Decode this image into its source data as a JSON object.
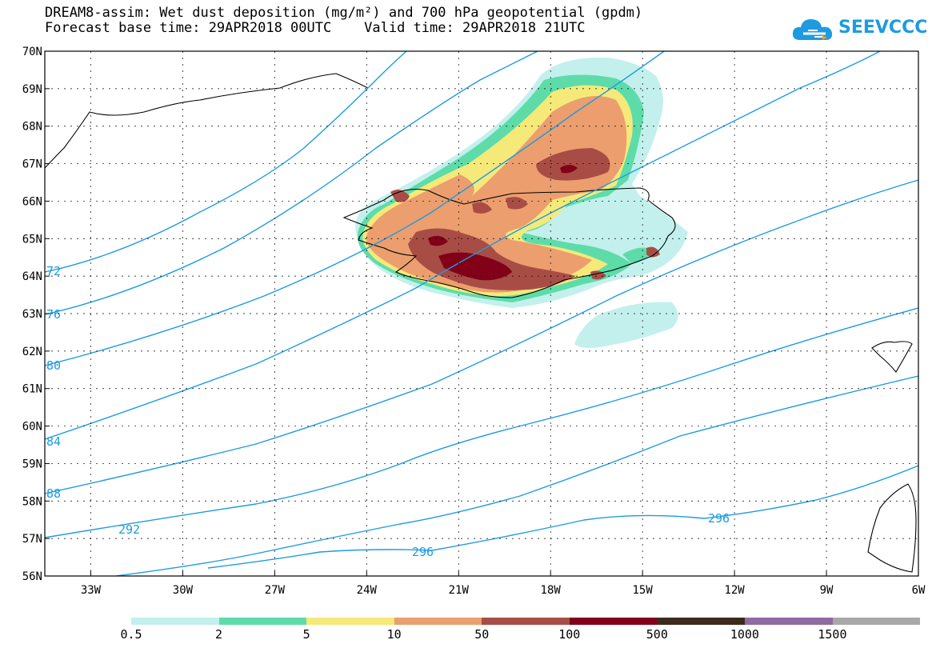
{
  "title": {
    "line1": "DREAM8-assim: Wet dust deposition (mg/m²) and 700 hPa geopotential (gpdm)",
    "line2": "Forecast base time: 29APR2018 00UTC    Valid time: 29APR2018 21UTC"
  },
  "logo": {
    "text": "SEEVCCC",
    "icon": "cloud-icon"
  },
  "axes": {
    "lat_labels": [
      "70N",
      "69N",
      "68N",
      "67N",
      "66N",
      "65N",
      "64N",
      "63N",
      "62N",
      "61N",
      "60N",
      "59N",
      "58N",
      "57N",
      "56N"
    ],
    "lon_labels": [
      "33W",
      "30W",
      "27W",
      "24W",
      "21W",
      "18W",
      "15W",
      "12W",
      "9W",
      "6W"
    ],
    "lat_range": [
      56,
      70
    ],
    "lon_range": [
      -34.5,
      -6
    ]
  },
  "contours": {
    "color": "#1e9be0",
    "labels": [
      "72",
      "76",
      "80",
      "84",
      "88",
      "292",
      "296",
      "296"
    ]
  },
  "legend": {
    "colors": [
      "#c3f0ec",
      "#5ddcaa",
      "#f5e97a",
      "#ec9e6e",
      "#a84d46",
      "#820018",
      "#3e2a1a",
      "#8f6aa3",
      "#a8a8a8"
    ],
    "labels": [
      "0.5",
      "2",
      "5",
      "10",
      "50",
      "100",
      "500",
      "1000",
      "1500"
    ]
  }
}
